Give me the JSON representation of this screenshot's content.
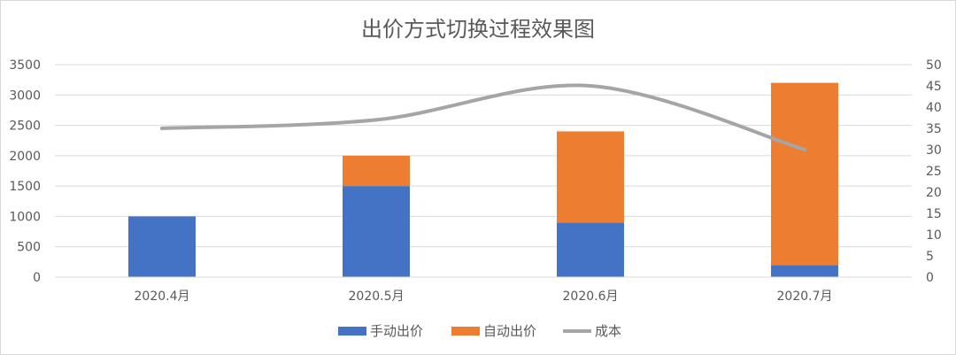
{
  "chart_data": {
    "type": "bar",
    "title": "出价方式切换过程效果图",
    "categories": [
      "2020.4月",
      "2020.5月",
      "2020.6月",
      "2020.7月"
    ],
    "y_left": {
      "ticks": [
        "0",
        "500",
        "1000",
        "1500",
        "2000",
        "2500",
        "3000",
        "3500"
      ],
      "range": [
        0,
        3500
      ]
    },
    "y_right": {
      "ticks": [
        "0",
        "5",
        "10",
        "15",
        "20",
        "25",
        "30",
        "35",
        "40",
        "45",
        "50"
      ],
      "range": [
        0,
        50
      ]
    },
    "series": [
      {
        "name": "手动出价",
        "kind": "stacked-bar",
        "axis": "left",
        "color": "#4472C4",
        "values": [
          1000,
          1500,
          900,
          200
        ]
      },
      {
        "name": "自动出价",
        "kind": "stacked-bar",
        "axis": "left",
        "color": "#ED7D31",
        "values": [
          0,
          500,
          1500,
          3000
        ]
      },
      {
        "name": "成本",
        "kind": "smooth-line",
        "axis": "right",
        "color": "#A5A5A5",
        "values": [
          35,
          37,
          45,
          30
        ]
      }
    ],
    "grid": true,
    "legend_position": "bottom"
  }
}
